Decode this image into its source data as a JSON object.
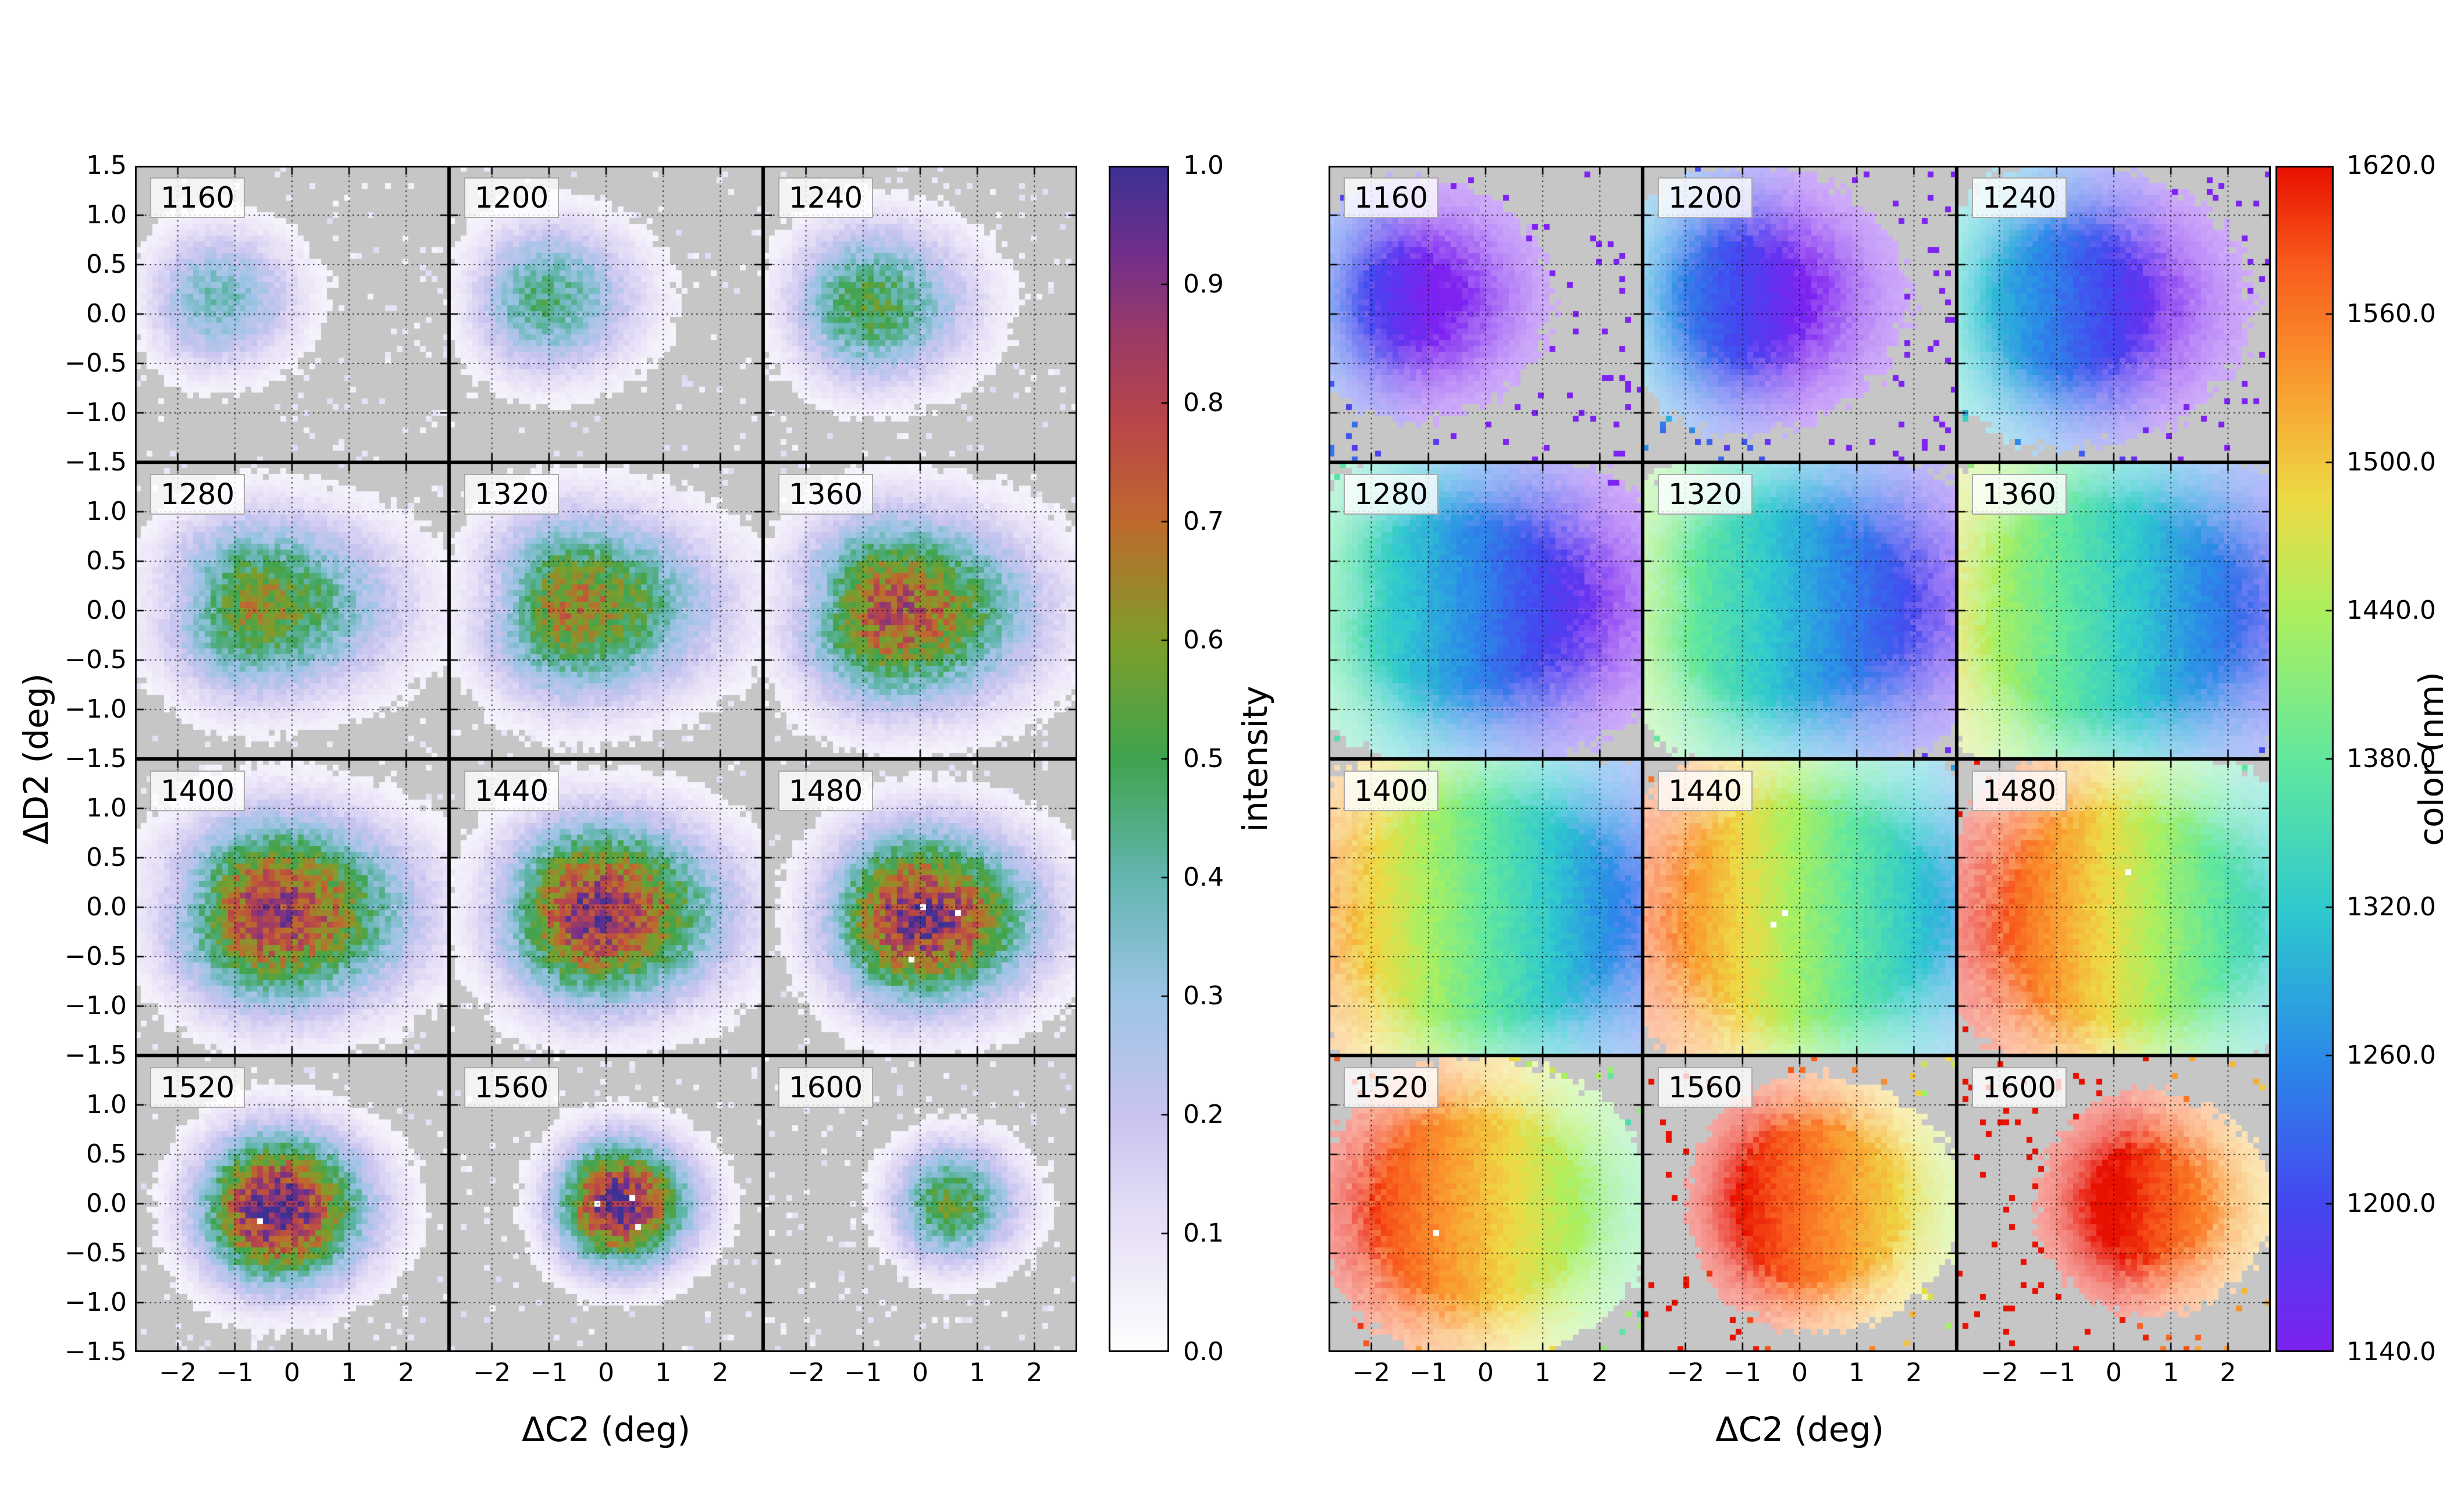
{
  "figure": {
    "background": "#ffffff",
    "plot_background": "#c6c6c6",
    "left_panel": {
      "xlabel": "ΔC2 (deg)",
      "ylabel": "ΔD2 (deg)",
      "colorbar": {
        "label": "intensity",
        "min": 0.0,
        "max": 1.0,
        "tick_labels": [
          "0.0",
          "0.1",
          "0.2",
          "0.3",
          "0.4",
          "0.5",
          "0.6",
          "0.7",
          "0.8",
          "0.9",
          "1.0"
        ],
        "cmap_stops": [
          [
            0,
            "#ffffff"
          ],
          [
            0.1,
            "#e9e2f7"
          ],
          [
            0.2,
            "#c9c5f0"
          ],
          [
            0.3,
            "#9dc4e6"
          ],
          [
            0.4,
            "#63b6b0"
          ],
          [
            0.5,
            "#3fa44f"
          ],
          [
            0.6,
            "#7f9e2b"
          ],
          [
            0.7,
            "#bf6a2e"
          ],
          [
            0.78,
            "#bb4747"
          ],
          [
            0.86,
            "#9a3a69"
          ],
          [
            0.93,
            "#6f2f8d"
          ],
          [
            1,
            "#3d3193"
          ]
        ]
      }
    },
    "right_panel": {
      "xlabel": "ΔC2 (deg)",
      "colorbar": {
        "label": "color (nm)",
        "min": 1140.0,
        "max": 1620.0,
        "tick_labels": [
          "1140.0",
          "1200.0",
          "1260.0",
          "1320.0",
          "1380.0",
          "1440.0",
          "1500.0",
          "1560.0",
          "1620.0"
        ],
        "cmap_stops": [
          [
            0,
            "#7d22f0"
          ],
          [
            0.12,
            "#4545f0"
          ],
          [
            0.25,
            "#2b8ce8"
          ],
          [
            0.37,
            "#2fc9cf"
          ],
          [
            0.5,
            "#62e89e"
          ],
          [
            0.62,
            "#aaf060"
          ],
          [
            0.72,
            "#eeda45"
          ],
          [
            0.82,
            "#fa9b30"
          ],
          [
            0.92,
            "#f85a1c"
          ],
          [
            1,
            "#e81000"
          ]
        ]
      }
    }
  },
  "chart_data": {
    "type": "heatmap",
    "description": "Two 4x3 grids of 2D histograms vs (ΔC2, ΔD2). Left grid: normalized intensity 0-1. Right grid: mean color (nm, 1140-1620). Each subplot labeled by wavelength in nm. Gray = no data, with sparse noise pixels.",
    "grid": {
      "rows": 4,
      "cols": 3
    },
    "x_range": [
      -2.75,
      2.75
    ],
    "y_range": [
      -1.5,
      1.5
    ],
    "x_tick_values": [
      -2,
      -1,
      0,
      1,
      2
    ],
    "x_tick_labels": [
      "−2",
      "−1",
      "0",
      "1",
      "2"
    ],
    "y_tick_values_first_row": [
      1.5,
      1.0,
      0.5,
      0.0,
      -0.5,
      -1.0,
      -1.5
    ],
    "y_tick_labels_first_row": [
      "1.5",
      "1.0",
      "0.5",
      "0.0",
      "−0.5",
      "−1.0",
      "−1.5"
    ],
    "y_tick_values_other_rows": [
      1.0,
      0.5,
      0.0,
      -0.5,
      -1.0,
      -1.5
    ],
    "y_tick_labels_other_rows": [
      "1.0",
      "0.5",
      "0.0",
      "−0.5",
      "−1.0",
      "−1.5"
    ],
    "grid_lines": {
      "style": "dotted",
      "x_at": [
        -2,
        -1,
        0,
        1,
        2
      ],
      "y_at": [
        -1,
        -0.5,
        0,
        0.5,
        1
      ]
    },
    "subplots": [
      {
        "label": "1160",
        "wavelength_nm": 1160,
        "peak_intensity": 0.38,
        "blob": {
          "cx": -1.35,
          "cy": 0.15,
          "sx_left": 0.75,
          "sx_right": 0.95,
          "sy": 0.46
        },
        "notch_amp": 0.0,
        "color_gradient_nm_per_deg": -50
      },
      {
        "label": "1200",
        "wavelength_nm": 1200,
        "peak_intensity": 0.45,
        "blob": {
          "cx": -1.1,
          "cy": 0.15,
          "sx_left": 0.8,
          "sx_right": 1.1,
          "sy": 0.5
        },
        "notch_amp": 0.0,
        "color_gradient_nm_per_deg": -50
      },
      {
        "label": "1240",
        "wavelength_nm": 1240,
        "peak_intensity": 0.52,
        "blob": {
          "cx": -0.95,
          "cy": 0.1,
          "sx_left": 0.85,
          "sx_right": 1.2,
          "sy": 0.52
        },
        "notch_amp": 0.0,
        "color_gradient_nm_per_deg": -50
      },
      {
        "label": "1280",
        "wavelength_nm": 1280,
        "peak_intensity": 0.62,
        "blob": {
          "cx": -0.7,
          "cy": 0.05,
          "sx_left": 1.0,
          "sx_right": 1.6,
          "sy": 0.58
        },
        "notch_amp": 0.32,
        "color_gradient_nm_per_deg": -48
      },
      {
        "label": "1320",
        "wavelength_nm": 1320,
        "peak_intensity": 0.68,
        "blob": {
          "cx": -0.6,
          "cy": 0.05,
          "sx_left": 1.0,
          "sx_right": 1.6,
          "sy": 0.6
        },
        "notch_amp": 0.32,
        "color_gradient_nm_per_deg": -48
      },
      {
        "label": "1360",
        "wavelength_nm": 1360,
        "peak_intensity": 0.78,
        "blob": {
          "cx": -0.5,
          "cy": 0.0,
          "sx_left": 1.05,
          "sx_right": 1.6,
          "sy": 0.62
        },
        "notch_amp": 0.25,
        "color_gradient_nm_per_deg": -48
      },
      {
        "label": "1400",
        "wavelength_nm": 1400,
        "peak_intensity": 0.86,
        "blob": {
          "cx": -0.35,
          "cy": -0.05,
          "sx_left": 1.1,
          "sx_right": 1.55,
          "sy": 0.62
        },
        "notch_amp": 0.22,
        "color_gradient_nm_per_deg": -55
      },
      {
        "label": "1440",
        "wavelength_nm": 1440,
        "peak_intensity": 0.9,
        "blob": {
          "cx": -0.2,
          "cy": -0.05,
          "sx_left": 1.05,
          "sx_right": 1.45,
          "sy": 0.6
        },
        "notch_amp": 0.15,
        "color_gradient_nm_per_deg": -55
      },
      {
        "label": "1480",
        "wavelength_nm": 1480,
        "peak_intensity": 0.92,
        "blob": {
          "cx": -0.05,
          "cy": -0.1,
          "sx_left": 1.0,
          "sx_right": 1.35,
          "sy": 0.58
        },
        "notch_amp": 0.1,
        "color_gradient_nm_per_deg": -55
      },
      {
        "label": "1520",
        "wavelength_nm": 1520,
        "peak_intensity": 1.0,
        "blob": {
          "cx": -0.3,
          "cy": -0.05,
          "sx_left": 0.85,
          "sx_right": 1.05,
          "sy": 0.5
        },
        "notch_amp": 0.0,
        "color_gradient_nm_per_deg": -45
      },
      {
        "label": "1560",
        "wavelength_nm": 1560,
        "peak_intensity": 0.97,
        "blob": {
          "cx": 0.2,
          "cy": 0.0,
          "sx_left": 0.7,
          "sx_right": 0.85,
          "sy": 0.42
        },
        "notch_amp": 0.0,
        "color_gradient_nm_per_deg": -45
      },
      {
        "label": "1600",
        "wavelength_nm": 1600,
        "peak_intensity": 0.55,
        "blob": {
          "cx": 0.5,
          "cy": 0.0,
          "sx_left": 0.65,
          "sx_right": 0.8,
          "sy": 0.4
        },
        "notch_amp": 0.0,
        "color_gradient_nm_per_deg": -45
      }
    ]
  }
}
